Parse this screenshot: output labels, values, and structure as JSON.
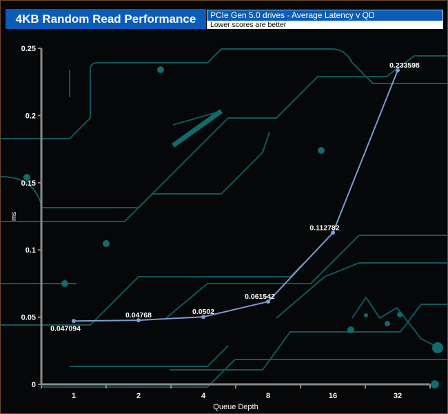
{
  "header": {
    "title": "4KB Random Read Performance",
    "subtitle": "PCIe Gen 5.0 drives -  Average Latency v QD",
    "note": "Lower scores are better"
  },
  "colors": {
    "header_blue": "#0a5cb8",
    "series": "#7f9ad6",
    "circuit": "#0f5a5c",
    "axis": "#8a8a8a"
  },
  "chart_data": {
    "type": "line",
    "title": "4KB Random Read Performance",
    "xlabel": "Queue Depth",
    "ylabel": "ms",
    "categories": [
      "1",
      "2",
      "4",
      "8",
      "16",
      "32"
    ],
    "series": [
      {
        "values": [
          0.047094,
          0.04768,
          0.0502,
          0.061542,
          0.112782,
          0.233598
        ]
      }
    ],
    "data_labels": [
      "0.047094",
      "0.04768",
      "0.0502",
      "0.061542",
      "0.112782",
      "0.233598"
    ],
    "ylim": [
      0,
      0.25
    ],
    "yticks": [
      "0",
      "0.05",
      "0.1",
      "0.15",
      "0.2",
      "0.25"
    ],
    "grid": false,
    "legend": "none"
  }
}
